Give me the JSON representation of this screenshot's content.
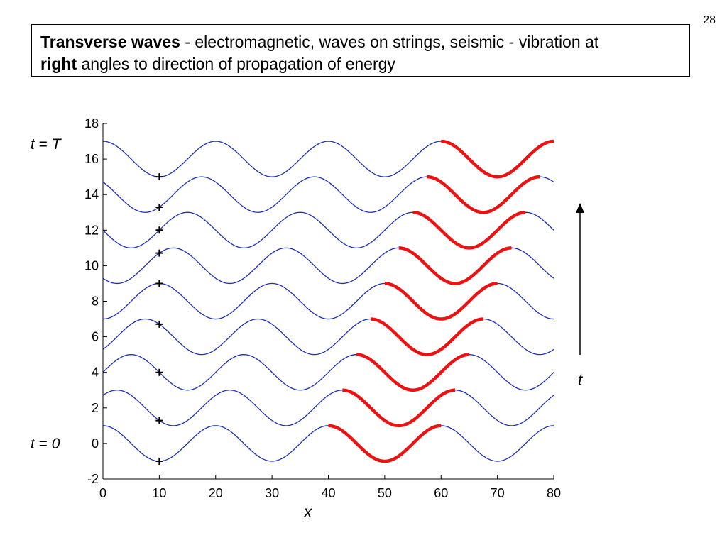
{
  "slide": {
    "number": "28",
    "heading": {
      "bold_term": "Transverse waves",
      "rest_line1": " - electromagnetic, waves on strings, seismic - vibration at",
      "bold_word": "right",
      "rest_line2": " angles to direction of propagation of energy"
    },
    "label_t_top": {
      "var": "t",
      "eq": " = ",
      "val": "T"
    },
    "label_t_zero": {
      "var": "t",
      "eq": " = ",
      "val": "0"
    },
    "arrow_label": "t"
  },
  "chart_data": {
    "type": "line",
    "xlabel": "x",
    "ylabel": "",
    "xlim": [
      0,
      80
    ],
    "ylim": [
      -2,
      18
    ],
    "x_ticks": [
      0,
      10,
      20,
      30,
      40,
      50,
      60,
      70,
      80
    ],
    "y_ticks": [
      -2,
      0,
      2,
      4,
      6,
      8,
      10,
      12,
      14,
      16,
      18
    ],
    "grid": false,
    "wavelength": 20,
    "amplitude": 1,
    "colors": {
      "wave": "#1f2fb5",
      "pulse": "#ee1111",
      "marker": "#000000"
    },
    "series": [
      {
        "baseline": 0,
        "phase_shift": 0,
        "highlight_x": [
          40,
          60
        ],
        "marker": [
          10,
          -1.0
        ]
      },
      {
        "baseline": 2,
        "phase_shift": 2.5,
        "highlight_x": [
          42.5,
          62.5
        ],
        "marker": [
          10,
          1.29
        ]
      },
      {
        "baseline": 4,
        "phase_shift": 5,
        "highlight_x": [
          45,
          65
        ],
        "marker": [
          10,
          4.0
        ]
      },
      {
        "baseline": 6,
        "phase_shift": 7.5,
        "highlight_x": [
          47.5,
          67.5
        ],
        "marker": [
          10,
          6.71
        ]
      },
      {
        "baseline": 8,
        "phase_shift": 10,
        "highlight_x": [
          50,
          70
        ],
        "marker": [
          10,
          9.0
        ]
      },
      {
        "baseline": 10,
        "phase_shift": 12.5,
        "highlight_x": [
          52.5,
          72.5
        ],
        "marker": [
          10,
          10.71
        ]
      },
      {
        "baseline": 12,
        "phase_shift": 15,
        "highlight_x": [
          55,
          75
        ],
        "marker": [
          10,
          12.0
        ]
      },
      {
        "baseline": 14,
        "phase_shift": 17.5,
        "highlight_x": [
          57.5,
          77.5
        ],
        "marker": [
          10,
          13.29
        ]
      },
      {
        "baseline": 16,
        "phase_shift": 20,
        "highlight_x": [
          60,
          80
        ],
        "marker": [
          10,
          15.0
        ]
      }
    ]
  }
}
